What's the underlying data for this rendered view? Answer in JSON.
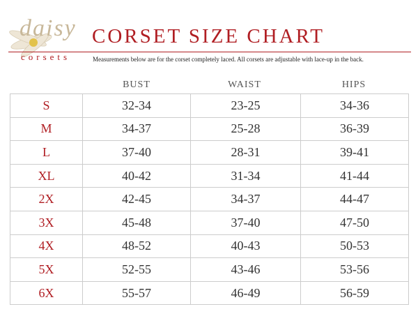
{
  "header": {
    "logo_name": "daisy",
    "logo_sub": "corsets",
    "title": "CORSET SIZE CHART",
    "subtitle": "Measurements below are for the corset completely laced.  All corsets are adjustable with lace-up in the back."
  },
  "table": {
    "columns": [
      "BUST",
      "WAIST",
      "HIPS"
    ],
    "rows": [
      [
        "S",
        "32-34",
        "23-25",
        "34-36"
      ],
      [
        "M",
        "34-37",
        "25-28",
        "36-39"
      ],
      [
        "L",
        "37-40",
        "28-31",
        "39-41"
      ],
      [
        "XL",
        "40-42",
        "31-34",
        "41-44"
      ],
      [
        "2X",
        "42-45",
        "34-37",
        "44-47"
      ],
      [
        "3X",
        "45-48",
        "37-40",
        "47-50"
      ],
      [
        "4X",
        "48-52",
        "40-43",
        "50-53"
      ],
      [
        "5X",
        "52-55",
        "43-46",
        "53-56"
      ],
      [
        "6X",
        "55-57",
        "46-49",
        "56-59"
      ]
    ]
  }
}
